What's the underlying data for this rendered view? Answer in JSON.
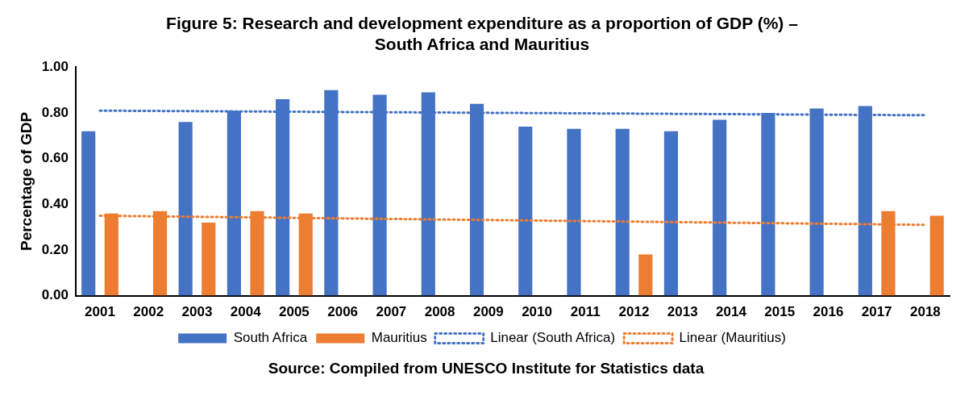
{
  "chart_data": {
    "type": "bar",
    "title": "Figure 5: Research and development expenditure as a proportion of GDP (%) – South Africa and Mauritius",
    "ylabel": "Percentage of GDP",
    "categories": [
      "2001",
      "2002",
      "2003",
      "2004",
      "2005",
      "2006",
      "2007",
      "2008",
      "2009",
      "2010",
      "2011",
      "2012",
      "2013",
      "2014",
      "2015",
      "2016",
      "2017",
      "2018"
    ],
    "series": [
      {
        "name": "South Africa",
        "color": "#4472c4",
        "values": [
          0.72,
          null,
          0.76,
          0.81,
          0.86,
          0.9,
          0.88,
          0.89,
          0.84,
          0.74,
          0.73,
          0.73,
          0.72,
          0.77,
          0.8,
          0.82,
          0.83,
          null
        ]
      },
      {
        "name": "Mauritius",
        "color": "#ed7d31",
        "values": [
          0.36,
          0.37,
          0.32,
          0.37,
          0.36,
          null,
          null,
          null,
          null,
          null,
          null,
          0.18,
          null,
          null,
          null,
          null,
          0.37,
          0.35
        ]
      },
      {
        "name": "Linear (South Africa)",
        "type": "line",
        "color": "#4472c4",
        "line_style": "dotted",
        "marker": "none",
        "values": [
          0.81,
          null,
          null,
          null,
          null,
          null,
          null,
          null,
          null,
          null,
          null,
          null,
          null,
          null,
          null,
          null,
          null,
          0.79
        ]
      },
      {
        "name": "Linear (Mauritius)",
        "type": "line",
        "color": "#ed7d31",
        "line_style": "dotted",
        "marker": "none",
        "values": [
          0.35,
          null,
          null,
          null,
          null,
          null,
          null,
          null,
          null,
          null,
          null,
          null,
          null,
          null,
          null,
          null,
          null,
          0.31
        ]
      }
    ],
    "ylim": [
      0,
      1
    ],
    "yticks": [
      {
        "value": 0,
        "label": "0.00"
      },
      {
        "value": 0.2,
        "label": "0.20"
      },
      {
        "value": 0.4,
        "label": "0.40"
      },
      {
        "value": 0.6,
        "label": "0.60"
      },
      {
        "value": 0.8,
        "label": "0.80"
      },
      {
        "value": 1,
        "label": "1.00"
      }
    ],
    "grid": false,
    "legend": "bottom",
    "annotations": [
      "Source: Compiled from UNESCO Institute for Statistics data"
    ]
  }
}
